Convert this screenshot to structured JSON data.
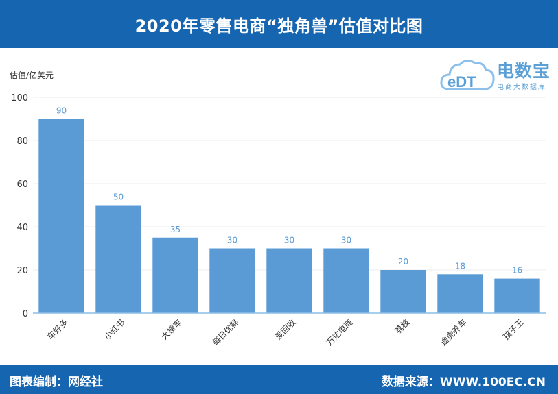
{
  "header": {
    "title": "2020年零售电商“独角兽”估值对比图"
  },
  "logo": {
    "mark_text": "eDT",
    "name": "电数宝",
    "subtitle": "电商大数据库"
  },
  "footer": {
    "left": "图表编制：网经社",
    "right": "数据来源：WWW.100EC.CN"
  },
  "colors": {
    "header_bg": "#1565b0",
    "bar": "#5b9bd5",
    "label": "#5b9bd5",
    "axis": "#8bbde8"
  },
  "chart_data": {
    "type": "bar",
    "title": "2020年零售电商“独角兽”估值对比图",
    "ylabel": "估值/亿美元",
    "xlabel": "",
    "categories": [
      "车好多",
      "小红书",
      "大搜车",
      "每日优鲜",
      "爱回收",
      "万达电商",
      "荔枝",
      "途虎养车",
      "孩子王"
    ],
    "values": [
      90,
      50,
      35,
      30,
      30,
      30,
      20,
      18,
      16
    ],
    "ylim": [
      0,
      100
    ],
    "yticks": [
      0,
      20,
      40,
      60,
      80,
      100
    ],
    "grid": true,
    "legend": "none"
  }
}
